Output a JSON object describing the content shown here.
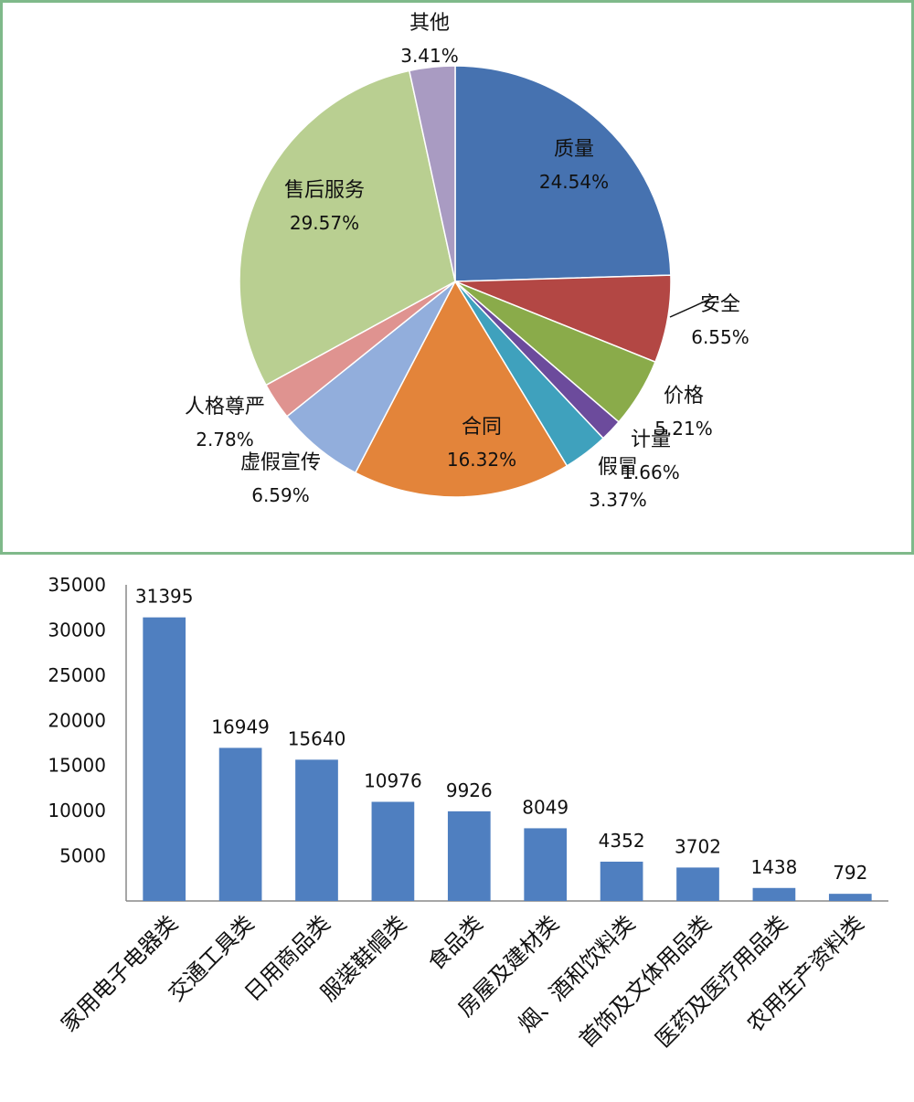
{
  "chart_data": [
    {
      "type": "pie",
      "slices": [
        {
          "label": "质量",
          "value": 24.54,
          "value_label": "24.54%",
          "color": "#4672b0"
        },
        {
          "label": "安全",
          "value": 6.55,
          "value_label": "6.55%",
          "color": "#b34744"
        },
        {
          "label": "价格",
          "value": 5.21,
          "value_label": "5.21%",
          "color": "#8aab4a"
        },
        {
          "label": "计量",
          "value": 1.66,
          "value_label": "1.66%",
          "color": "#6c4b9c"
        },
        {
          "label": "假冒",
          "value": 3.37,
          "value_label": "3.37%",
          "color": "#3fa1bd"
        },
        {
          "label": "合同",
          "value": 16.32,
          "value_label": "16.32%",
          "color": "#e3843a"
        },
        {
          "label": "虚假宣传",
          "value": 6.59,
          "value_label": "6.59%",
          "color": "#92aedc"
        },
        {
          "label": "人格尊严",
          "value": 2.78,
          "value_label": "2.78%",
          "color": "#df9390"
        },
        {
          "label": "售后服务",
          "value": 29.57,
          "value_label": "29.57%",
          "color": "#b9cf91"
        },
        {
          "label": "其他",
          "value": 3.41,
          "value_label": "3.41%",
          "color": "#a99bc2"
        }
      ],
      "frame_color": "#7fb98a"
    },
    {
      "type": "bar",
      "categories": [
        "家用电子电器类",
        "交通工具类",
        "日用商品类",
        "服装鞋帽类",
        "食品类",
        "房屋及建材类",
        "烟、酒和饮料类",
        "首饰及文体用品类",
        "医药及医疗用品类",
        "农用生产资料类"
      ],
      "values": [
        31395,
        16949,
        15640,
        10976,
        9926,
        8049,
        4352,
        3702,
        1438,
        792
      ],
      "yticks": [
        "5000",
        "10000",
        "15000",
        "20000",
        "25000",
        "30000",
        "35000"
      ],
      "ylim": [
        0,
        35000
      ],
      "bar_color": "#4f7fc0",
      "grid": false,
      "legend": "none"
    }
  ]
}
